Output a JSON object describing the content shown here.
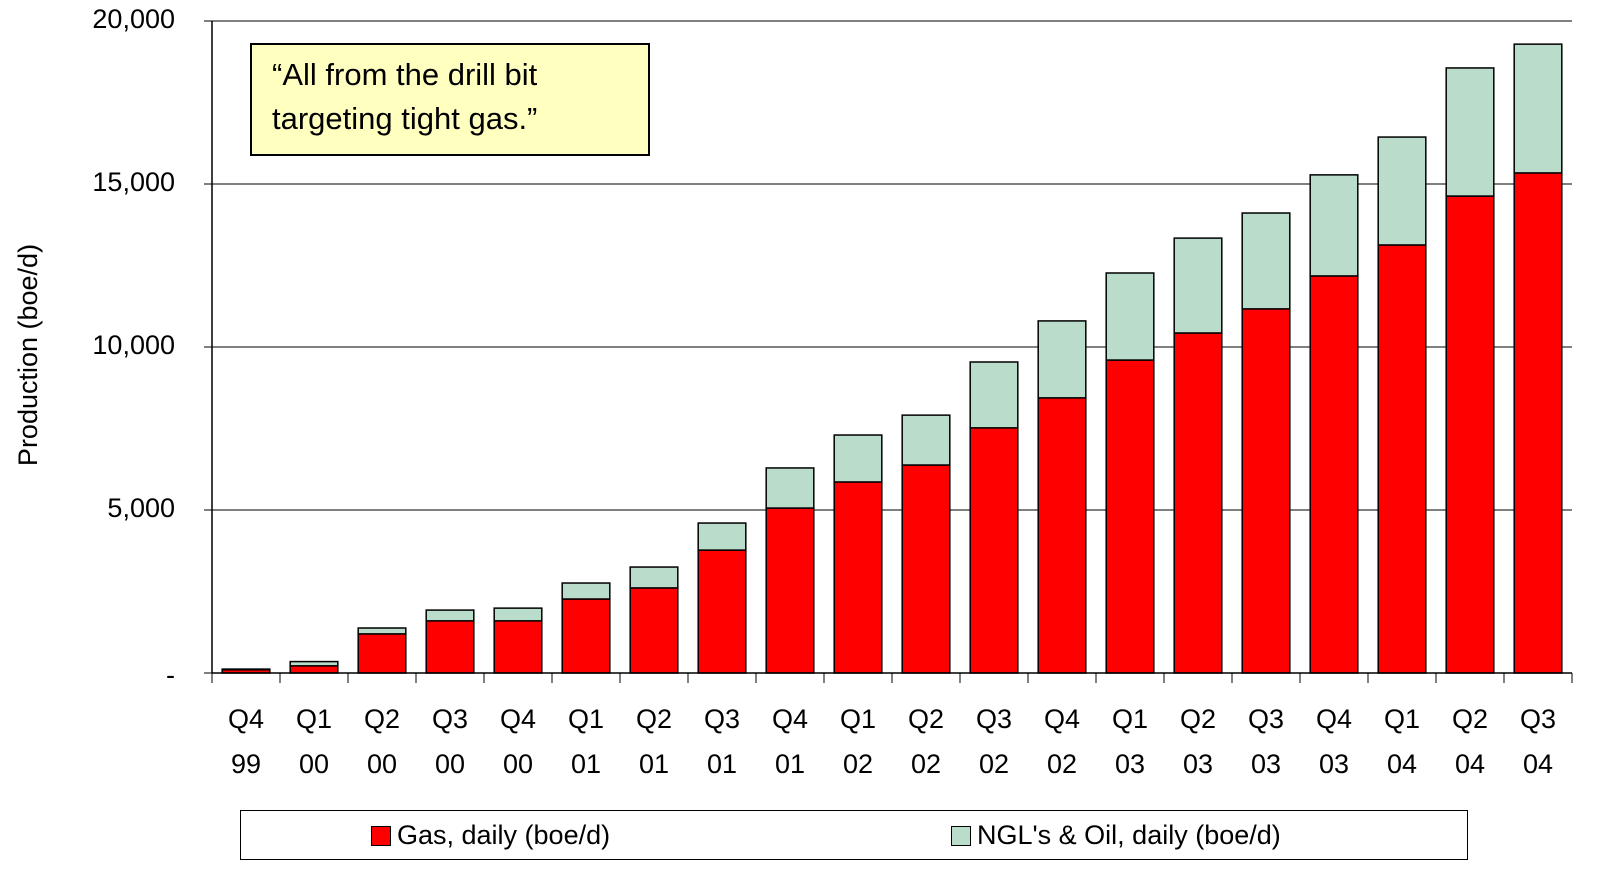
{
  "chart_data": {
    "type": "stacked_bar",
    "y_label": "Production (boe/d)",
    "annotations": [
      "“All from the drill bit",
      "targeting tight gas.”"
    ],
    "categories": [
      "Q4 99",
      "Q1 00",
      "Q2 00",
      "Q3 00",
      "Q4 00",
      "Q1 01",
      "Q2 01",
      "Q3 01",
      "Q4 01",
      "Q1 02",
      "Q2 02",
      "Q3 02",
      "Q4 02",
      "Q1 03",
      "Q2 03",
      "Q3 03",
      "Q4 03",
      "Q1 04",
      "Q2 04",
      "Q3 04"
    ],
    "series": [
      {
        "name": "Gas, daily (boe/d)",
        "color": "#ff0000",
        "values": [
          100,
          220,
          1200,
          1600,
          1600,
          2270,
          2610,
          3770,
          5060,
          5860,
          6380,
          7520,
          8440,
          9600,
          10430,
          11170,
          12180,
          13130,
          14630,
          15340
        ]
      },
      {
        "name": "NGL's & Oil, daily (boe/d)",
        "color": "#b9dccb",
        "values": [
          20,
          130,
          180,
          330,
          390,
          490,
          640,
          830,
          1230,
          1440,
          1530,
          2020,
          2360,
          2670,
          2910,
          2940,
          3100,
          3310,
          3930,
          3950
        ]
      }
    ],
    "ylim": [
      0,
      20000
    ],
    "yticks": [
      {
        "value": 0,
        "label": "-"
      },
      {
        "value": 5000,
        "label": "5,000"
      },
      {
        "value": 10000,
        "label": "10,000"
      },
      {
        "value": 15000,
        "label": "15,000"
      },
      {
        "value": 20000,
        "label": "20,000"
      }
    ],
    "grid": true
  }
}
